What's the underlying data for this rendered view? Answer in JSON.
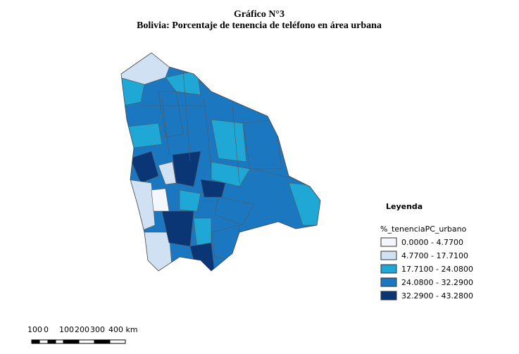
{
  "header": {
    "title": "Gráfico N°3",
    "subtitle": "Bolivia: Porcentaje de tenencia de teléfono en área urbana"
  },
  "legend": {
    "heading": "Leyenda",
    "field": "%_tenenciaPC_urbano",
    "classes": [
      {
        "label": "0.0000 - 4.7700",
        "color": "#f4f8fc"
      },
      {
        "label": "4.7700 - 17.7100",
        "color": "#cfe1f2"
      },
      {
        "label": "17.7100 - 24.0800",
        "color": "#1fa7d6"
      },
      {
        "label": "24.0800 - 32.2900",
        "color": "#1b78c0"
      },
      {
        "label": "32.2900 - 43.2800",
        "color": "#0a3676"
      }
    ]
  },
  "scale_bar": {
    "labels": [
      "100",
      "0",
      "100",
      "200",
      "300",
      "400 km"
    ]
  }
}
